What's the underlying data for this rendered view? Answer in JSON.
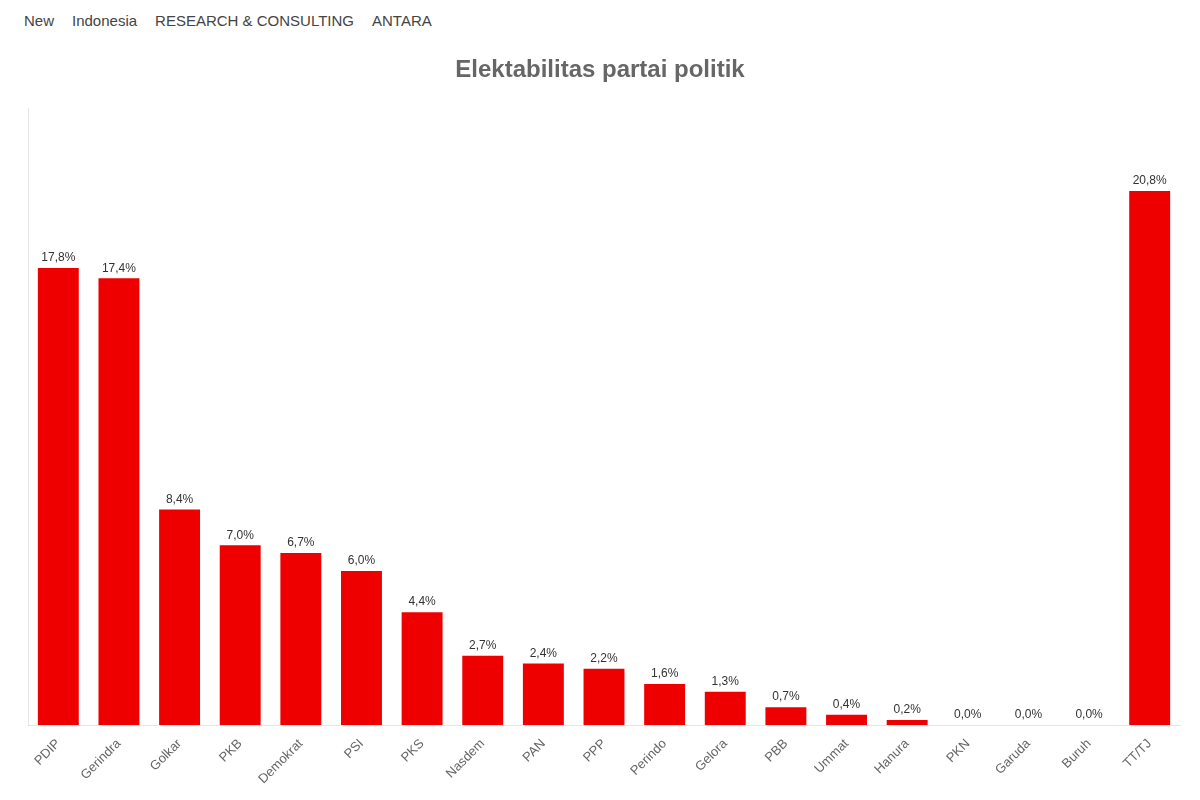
{
  "chart_data": {
    "type": "bar",
    "title": "Elektabilitas partai politik",
    "categories": [
      "PDIP",
      "Gerindra",
      "Golkar",
      "PKB",
      "Demokrat",
      "PSI",
      "PKS",
      "Nasdem",
      "PAN",
      "PPP",
      "Perindo",
      "Gelora",
      "PBB",
      "Ummat",
      "Hanura",
      "PKN",
      "Garuda",
      "Buruh",
      "TT/TJ"
    ],
    "values": [
      17.8,
      17.4,
      8.4,
      7.0,
      6.7,
      6.0,
      4.4,
      2.7,
      2.4,
      2.2,
      1.6,
      1.3,
      0.7,
      0.4,
      0.2,
      0.0,
      0.0,
      0.0,
      20.8
    ],
    "value_labels": [
      "17,8%",
      "17,4%",
      "8,4%",
      "7,0%",
      "6,7%",
      "6,0%",
      "4,4%",
      "2,7%",
      "2,4%",
      "2,2%",
      "1,6%",
      "1,3%",
      "0,7%",
      "0,4%",
      "0,2%",
      "0,0%",
      "0,0%",
      "0,0%",
      "20,8%"
    ],
    "color": "#EE0000",
    "ylim": [
      0,
      24
    ],
    "grid": false,
    "data_labels": true,
    "tick_labels": "x",
    "annotations": [
      "New",
      "Indonesia",
      "RESEARCH & CONSULTING",
      "ANTARA"
    ]
  }
}
